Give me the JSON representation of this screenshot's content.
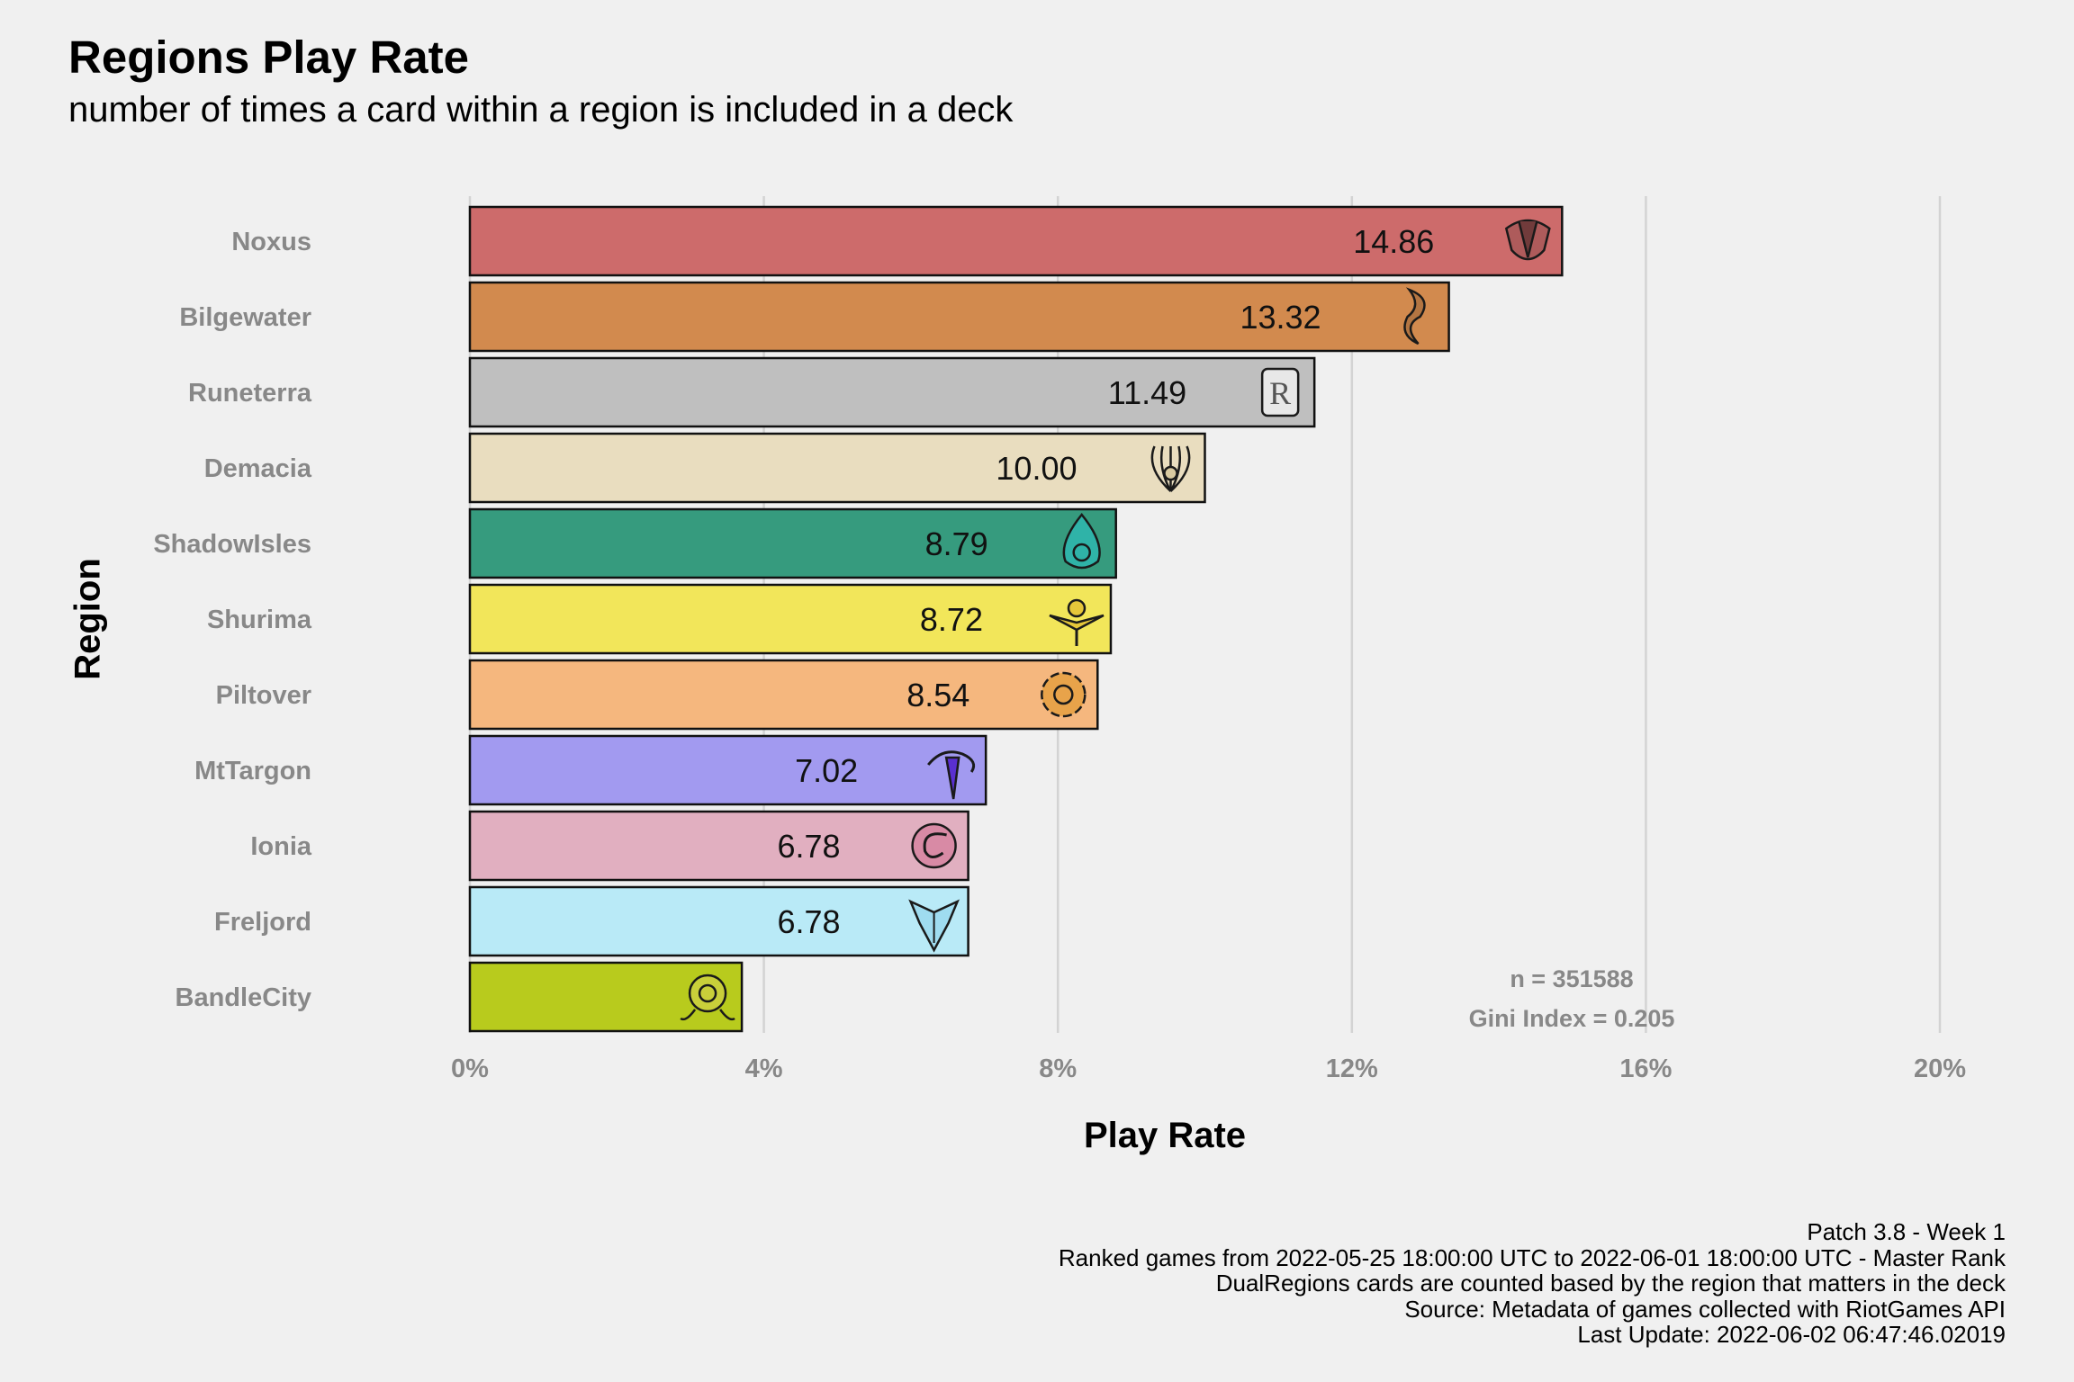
{
  "header": {
    "title": "Regions Play Rate",
    "subtitle": "number of times a card within a region is included in a deck"
  },
  "chart_data": {
    "type": "bar",
    "orientation": "horizontal",
    "title": "Regions Play Rate",
    "subtitle": "number of times a card within a region is included in a deck",
    "xlabel": "Play Rate",
    "ylabel": "Region",
    "xlim": [
      0,
      20
    ],
    "xticks": [
      "0%",
      "4%",
      "8%",
      "12%",
      "16%",
      "20%"
    ],
    "grid": "vertical-major",
    "categories": [
      "Noxus",
      "Bilgewater",
      "Runeterra",
      "Demacia",
      "ShadowIsles",
      "Shurima",
      "Piltover",
      "MtTargon",
      "Ionia",
      "Freljord",
      "BandleCity"
    ],
    "values": [
      14.86,
      13.32,
      11.49,
      10.0,
      8.79,
      8.72,
      8.54,
      7.02,
      6.78,
      6.78,
      3.7
    ],
    "labels": [
      "14.86",
      "13.32",
      "11.49",
      "10.00",
      "8.79",
      "8.72",
      "8.54",
      "7.02",
      "6.78",
      "6.78",
      ""
    ],
    "colors": [
      "#cd6b6b",
      "#d28a4e",
      "#bfbfbf",
      "#e9ddbf",
      "#369b7e",
      "#f2e65a",
      "#f5b77e",
      "#a29af0",
      "#e1afc0",
      "#b9eaf7",
      "#b8cb1d"
    ],
    "icons": [
      "noxus-icon",
      "bilgewater-icon",
      "runeterra-icon",
      "demacia-icon",
      "shadowisles-icon",
      "shurima-icon",
      "piltover-icon",
      "mttargon-icon",
      "ionia-icon",
      "freljord-icon",
      "bandlecity-icon"
    ],
    "annotations": [
      "n = 351588",
      "Gini Index = 0.205"
    ]
  },
  "caption": {
    "lines": [
      "Patch 3.8 - Week 1",
      "Ranked games from 2022-05-25 18:00:00 UTC to 2022-06-01 18:00:00 UTC - Master Rank",
      "DualRegions cards are counted based by the region that matters in the deck",
      "Source: Metadata of games collected with RiotGames API",
      "Last Update: 2022-06-02 06:47:46.02019"
    ]
  }
}
